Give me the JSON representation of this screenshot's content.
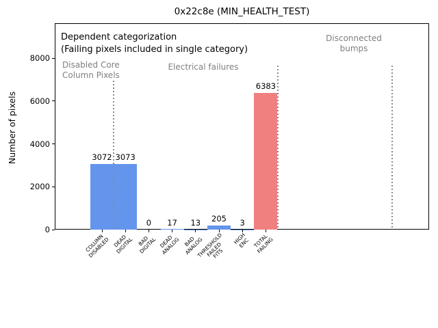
{
  "figure": {
    "title": "0x22c8e (MIN_HEALTH_TEST)",
    "ylabel": "Number of pixels"
  },
  "annotations": {
    "dependent_note": "Dependent categorization\n(Failing pixels included in single category)",
    "region_disabled": "Disabled Core\nColumn Pixels",
    "region_electrical": "Electrical failures",
    "region_disconnected": "Disconnected\nbumps"
  },
  "colors": {
    "bar_blue": "#6495ed",
    "bar_red": "#f08080",
    "gray_text": "#7f7f7f",
    "separator_gray": "#8a8a8a",
    "axis_black": "#000000"
  },
  "chart_data": {
    "type": "bar",
    "title": "0x22c8e (MIN_HEALTH_TEST)",
    "xlabel": "",
    "ylabel": "Number of pixels",
    "categories": [
      "COLUMN\nDISABLED",
      "DEAD\nDIGITAL",
      "BAD\nDIGITAL",
      "DEAD\nANALOG",
      "BAD\nANALOG",
      "THRESHOLD\nFAILED\nFITS",
      "HIGH\nENC",
      "TOTAL\nFAILING"
    ],
    "values": [
      3072,
      3073,
      0,
      17,
      13,
      205,
      3,
      6383
    ],
    "value_labels": [
      "3072",
      "3073",
      "0",
      "17",
      "13",
      "205",
      "3",
      "6383"
    ],
    "bar_colors": [
      "#6495ed",
      "#6495ed",
      "#6495ed",
      "#6495ed",
      "#6495ed",
      "#6495ed",
      "#6495ed",
      "#f08080"
    ],
    "yticks": [
      0,
      2000,
      4000,
      6000,
      8000
    ],
    "ylim": [
      0,
      9625
    ],
    "grid": false,
    "legend": null,
    "region_separators_after_category": [
      0.5,
      7.5,
      12.4
    ],
    "region_labels": [
      {
        "text": "Disabled Core\nColumn Pixels",
        "color": "#7f7f7f"
      },
      {
        "text": "Electrical failures",
        "color": "#7f7f7f"
      },
      {
        "text": "Disconnected\nbumps",
        "color": "#7f7f7f"
      }
    ],
    "note": "Dependent categorization\n(Failing pixels included in single category)"
  }
}
